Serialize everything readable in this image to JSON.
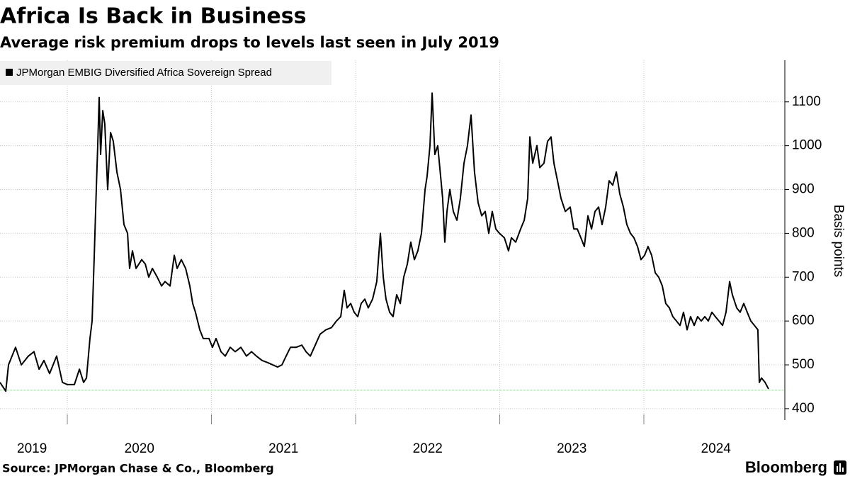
{
  "chart_data": {
    "type": "line",
    "title": "Africa Is Back in Business",
    "subtitle": "Average risk premium drops to levels last seen in July 2019",
    "y_label": "Basis points",
    "source": "Source: JPMorgan Chase & Co., Bloomberg",
    "brand": "Bloomberg",
    "grid": true,
    "legend": "top-left",
    "xlim": [
      2019.533,
      2024.865
    ],
    "xticks": [
      2019,
      2020,
      2021,
      2022,
      2023,
      2024
    ],
    "ylim": [
      374,
      1195
    ],
    "yticks": [
      400,
      500,
      600,
      700,
      800,
      900,
      1000,
      1100
    ],
    "reference_line": {
      "value": 442,
      "color": "#8fdc8f"
    },
    "x": [
      2019.533,
      2019.573,
      2019.592,
      2019.641,
      2019.681,
      2019.73,
      2019.769,
      2019.804,
      2019.838,
      2019.877,
      2019.926,
      2019.966,
      2020.0,
      2020.049,
      2020.084,
      2020.113,
      2020.133,
      2020.157,
      2020.172,
      2020.187,
      2020.201,
      2020.211,
      2020.221,
      2020.231,
      2020.246,
      2020.26,
      2020.28,
      2020.3,
      2020.319,
      2020.344,
      2020.369,
      2020.393,
      2020.418,
      2020.432,
      2020.452,
      2020.477,
      2020.516,
      2020.541,
      2020.565,
      2020.59,
      2020.624,
      2020.654,
      2020.678,
      2020.713,
      2020.742,
      2020.762,
      2020.791,
      2020.821,
      2020.85,
      2020.87,
      2020.889,
      2020.919,
      2020.943,
      2020.983,
      2021.007,
      2021.032,
      2021.066,
      2021.096,
      2021.13,
      2021.165,
      2021.204,
      2021.243,
      2021.278,
      2021.312,
      2021.351,
      2021.391,
      2021.425,
      2021.459,
      2021.489,
      2021.518,
      2021.548,
      2021.587,
      2021.627,
      2021.656,
      2021.686,
      2021.72,
      2021.754,
      2021.794,
      2021.833,
      2021.867,
      2021.897,
      2021.921,
      2021.941,
      2021.966,
      2021.99,
      2022.015,
      2022.039,
      2022.064,
      2022.088,
      2022.118,
      2022.147,
      2022.172,
      2022.192,
      2022.211,
      2022.236,
      2022.26,
      2022.285,
      2022.31,
      2022.334,
      2022.359,
      2022.383,
      2022.408,
      2022.432,
      2022.457,
      2022.482,
      2022.496,
      2022.516,
      2022.531,
      2022.55,
      2022.57,
      2022.59,
      2022.604,
      2022.619,
      2022.634,
      2022.654,
      2022.678,
      2022.703,
      2022.727,
      2022.752,
      2022.776,
      2022.801,
      2022.825,
      2022.85,
      2022.875,
      2022.899,
      2022.924,
      2022.948,
      2022.973,
      2022.998,
      2023.032,
      2023.061,
      2023.081,
      2023.111,
      2023.145,
      2023.17,
      2023.194,
      2023.209,
      2023.229,
      2023.258,
      2023.278,
      2023.307,
      2023.332,
      2023.356,
      2023.376,
      2023.401,
      2023.425,
      2023.455,
      2023.489,
      2023.514,
      2023.538,
      2023.563,
      2023.587,
      2023.612,
      2023.637,
      2023.661,
      2023.686,
      2023.71,
      2023.735,
      2023.759,
      2023.784,
      2023.809,
      2023.833,
      2023.858,
      2023.882,
      2023.907,
      2023.931,
      2023.956,
      2023.98,
      2024.005,
      2024.029,
      2024.054,
      2024.079,
      2024.103,
      2024.128,
      2024.152,
      2024.177,
      2024.201,
      2024.226,
      2024.251,
      2024.275,
      2024.3,
      2024.324,
      2024.349,
      2024.373,
      2024.398,
      2024.423,
      2024.447,
      2024.472,
      2024.496,
      2024.521,
      2024.546,
      2024.57,
      2024.595,
      2024.614,
      2024.644,
      2024.668,
      2024.693,
      2024.717,
      2024.742,
      2024.767,
      2024.791,
      2024.801,
      2024.816,
      2024.841,
      2024.865
    ],
    "series": [
      {
        "name": "JPMorgan EMBIG Diversified Africa Sovereign Spread",
        "color": "#000000",
        "values": [
          460,
          440,
          500,
          540,
          500,
          520,
          530,
          490,
          510,
          480,
          520,
          460,
          455,
          455,
          490,
          460,
          470,
          560,
          600,
          750,
          900,
          1000,
          1110,
          980,
          1080,
          1050,
          900,
          1030,
          1010,
          940,
          900,
          820,
          800,
          720,
          760,
          720,
          740,
          730,
          700,
          720,
          700,
          680,
          690,
          680,
          750,
          720,
          740,
          720,
          680,
          640,
          620,
          580,
          560,
          560,
          540,
          560,
          530,
          520,
          540,
          530,
          540,
          520,
          530,
          520,
          510,
          505,
          500,
          495,
          500,
          520,
          540,
          540,
          545,
          530,
          520,
          545,
          570,
          580,
          585,
          600,
          610,
          670,
          630,
          640,
          620,
          610,
          640,
          650,
          630,
          650,
          690,
          800,
          700,
          650,
          620,
          610,
          660,
          640,
          700,
          730,
          780,
          740,
          760,
          800,
          900,
          930,
          1000,
          1120,
          980,
          1000,
          930,
          880,
          780,
          850,
          900,
          850,
          830,
          880,
          960,
          1000,
          1070,
          940,
          870,
          840,
          850,
          800,
          850,
          810,
          800,
          790,
          760,
          790,
          780,
          810,
          830,
          880,
          1020,
          960,
          1000,
          950,
          960,
          1010,
          1020,
          960,
          920,
          880,
          850,
          860,
          810,
          810,
          790,
          770,
          840,
          810,
          850,
          860,
          820,
          860,
          920,
          910,
          940,
          890,
          860,
          820,
          800,
          790,
          770,
          740,
          750,
          770,
          750,
          710,
          700,
          680,
          640,
          630,
          610,
          600,
          590,
          620,
          580,
          610,
          590,
          610,
          600,
          610,
          600,
          620,
          610,
          600,
          590,
          620,
          690,
          660,
          630,
          620,
          640,
          620,
          600,
          590,
          580,
          460,
          470,
          460,
          445
        ]
      }
    ]
  }
}
